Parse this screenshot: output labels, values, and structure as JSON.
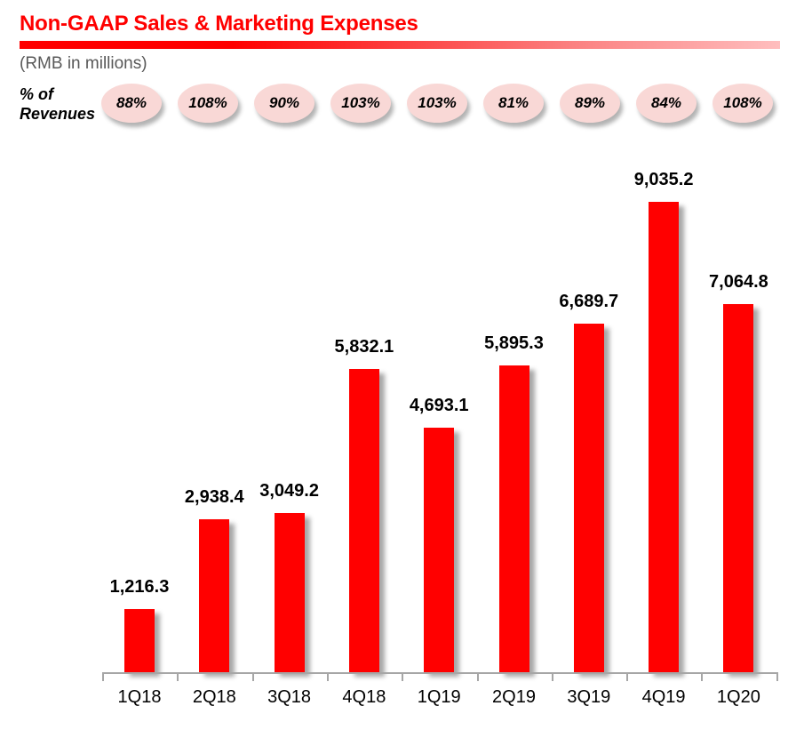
{
  "header": {
    "title": "Non-GAAP Sales & Marketing Expenses",
    "subtitle": "(RMB in millions)"
  },
  "percent_row": {
    "label": "% of Revenues",
    "values": [
      "88%",
      "108%",
      "90%",
      "103%",
      "103%",
      "81%",
      "89%",
      "84%",
      "108%"
    ]
  },
  "chart_data": {
    "type": "bar",
    "title": "Non-GAAP Sales & Marketing Expenses",
    "unit": "RMB in millions",
    "categories": [
      "1Q18",
      "2Q18",
      "3Q18",
      "4Q18",
      "1Q19",
      "2Q19",
      "3Q19",
      "4Q19",
      "1Q20"
    ],
    "values": [
      1216.3,
      2938.4,
      3049.2,
      5832.1,
      4693.1,
      5895.3,
      6689.7,
      9035.2,
      7064.8
    ],
    "value_labels": [
      "1,216.3",
      "2,938.4",
      "3,049.2",
      "5,832.1",
      "4,693.1",
      "5,895.3",
      "6,689.7",
      "9,035.2",
      "7,064.8"
    ],
    "pct_of_revenues": [
      88,
      108,
      90,
      103,
      103,
      81,
      89,
      84,
      108
    ],
    "xlabel": "",
    "ylabel": "",
    "ylim": [
      0,
      9600
    ],
    "grid": false,
    "legend": null,
    "data_labels": true,
    "bar_color": "#FF0000"
  },
  "colors": {
    "accent_red": "#FF0000",
    "underline_fade": "#FFBEBE",
    "badge_pink": "#F9D8D6",
    "subtitle_gray": "#595959",
    "axis_gray": "#A6A6A6",
    "label_black": "#000000"
  }
}
